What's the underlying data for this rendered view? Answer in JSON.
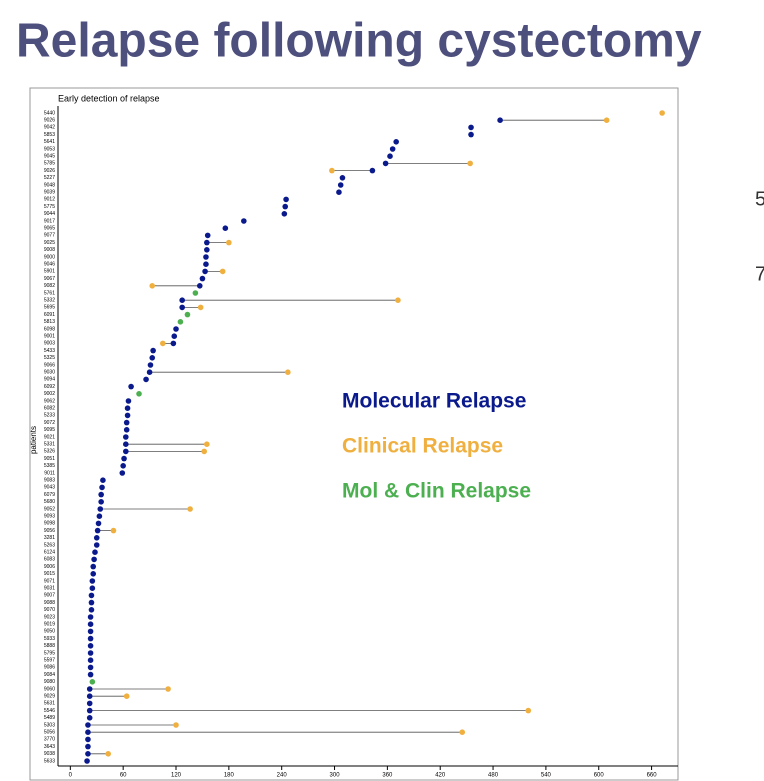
{
  "slide": {
    "title": "Relapse following cystectomy",
    "side_text": [
      "5",
      "7"
    ]
  },
  "chart_data": {
    "type": "dumbbell",
    "title": "Early detection of relapse",
    "y_label": "patients",
    "categories": [
      "5440",
      "9026",
      "9042",
      "5853",
      "5641",
      "9053",
      "9045",
      "5785",
      "9026",
      "5227",
      "9048",
      "9039",
      "9012",
      "5775",
      "9044",
      "9017",
      "9065",
      "9077",
      "9025",
      "9008",
      "9000",
      "9046",
      "5901",
      "9067",
      "9082",
      "5761",
      "5332",
      "5695",
      "6091",
      "5813",
      "6098",
      "9001",
      "9003",
      "5433",
      "5325",
      "9066",
      "9030",
      "9094",
      "6092",
      "9002",
      "9062",
      "6082",
      "5233",
      "9072",
      "9095",
      "9021",
      "5331",
      "5326",
      "9051",
      "5385",
      "9011",
      "9083",
      "9043",
      "6079",
      "5680",
      "9052",
      "9093",
      "9098",
      "9056",
      "3281",
      "5263",
      "6124",
      "6083",
      "9006",
      "9015",
      "9071",
      "9031",
      "9007",
      "9088",
      "9070",
      "9023",
      "9019",
      "9050",
      "5933",
      "5888",
      "5795",
      "5597",
      "9086",
      "9084",
      "9080",
      "9060",
      "9029",
      "5631",
      "5546",
      "5489",
      "5303",
      "5056",
      "3770",
      "3643",
      "9038",
      "5633"
    ],
    "series": [
      {
        "name": "Molecular Relapse",
        "color": "#0a1a8c",
        "values": [
          null,
          488,
          455,
          455,
          370,
          366,
          363,
          358,
          343,
          309,
          307,
          305,
          245,
          244,
          243,
          197,
          176,
          156,
          155,
          155,
          154,
          154,
          153,
          150,
          147,
          null,
          127,
          127,
          null,
          null,
          120,
          118,
          117,
          94,
          93,
          91,
          90,
          86,
          69,
          null,
          66,
          65,
          65,
          64,
          64,
          63,
          63,
          63,
          61,
          60,
          59,
          37,
          36,
          35,
          35,
          34,
          33,
          32,
          31,
          30,
          30,
          28,
          27,
          26,
          26,
          25,
          25,
          24,
          24,
          24,
          23,
          23,
          23,
          23,
          23,
          23,
          23,
          23,
          23,
          null,
          22,
          22,
          22,
          22,
          22,
          20,
          20,
          20,
          20,
          20,
          19
        ]
      },
      {
        "name": "Clinical Relapse",
        "color": "#f0b040",
        "values": [
          672,
          609,
          null,
          null,
          null,
          null,
          null,
          454,
          297,
          null,
          null,
          null,
          null,
          null,
          null,
          null,
          null,
          null,
          180,
          null,
          null,
          null,
          173,
          null,
          93,
          null,
          372,
          148,
          null,
          null,
          null,
          null,
          105,
          null,
          null,
          null,
          247,
          null,
          null,
          null,
          null,
          null,
          null,
          null,
          null,
          null,
          155,
          152,
          null,
          null,
          null,
          null,
          null,
          null,
          null,
          136,
          null,
          null,
          49,
          null,
          null,
          null,
          null,
          null,
          null,
          null,
          null,
          null,
          null,
          null,
          null,
          null,
          null,
          null,
          null,
          null,
          null,
          null,
          null,
          null,
          111,
          64,
          null,
          520,
          null,
          120,
          445,
          null,
          null,
          43,
          null
        ]
      },
      {
        "name": "Mol & Clin Relapse",
        "color": "#4caf50",
        "values": [
          null,
          null,
          null,
          null,
          null,
          null,
          null,
          null,
          null,
          null,
          null,
          null,
          null,
          null,
          null,
          null,
          null,
          null,
          null,
          null,
          null,
          null,
          null,
          null,
          null,
          142,
          null,
          null,
          133,
          125,
          null,
          null,
          null,
          null,
          null,
          null,
          null,
          null,
          null,
          78,
          null,
          null,
          null,
          null,
          null,
          null,
          null,
          null,
          null,
          null,
          null,
          null,
          null,
          null,
          null,
          null,
          null,
          null,
          null,
          null,
          null,
          null,
          null,
          null,
          null,
          null,
          null,
          null,
          null,
          null,
          null,
          null,
          null,
          null,
          null,
          null,
          null,
          null,
          null,
          25,
          null,
          null,
          null,
          null,
          null,
          null,
          null,
          null,
          null,
          null,
          null
        ]
      }
    ],
    "xlim": [
      -14,
      690
    ],
    "xticks": [
      0,
      60,
      120,
      180,
      240,
      300,
      360,
      420,
      480,
      540,
      600,
      660
    ]
  }
}
